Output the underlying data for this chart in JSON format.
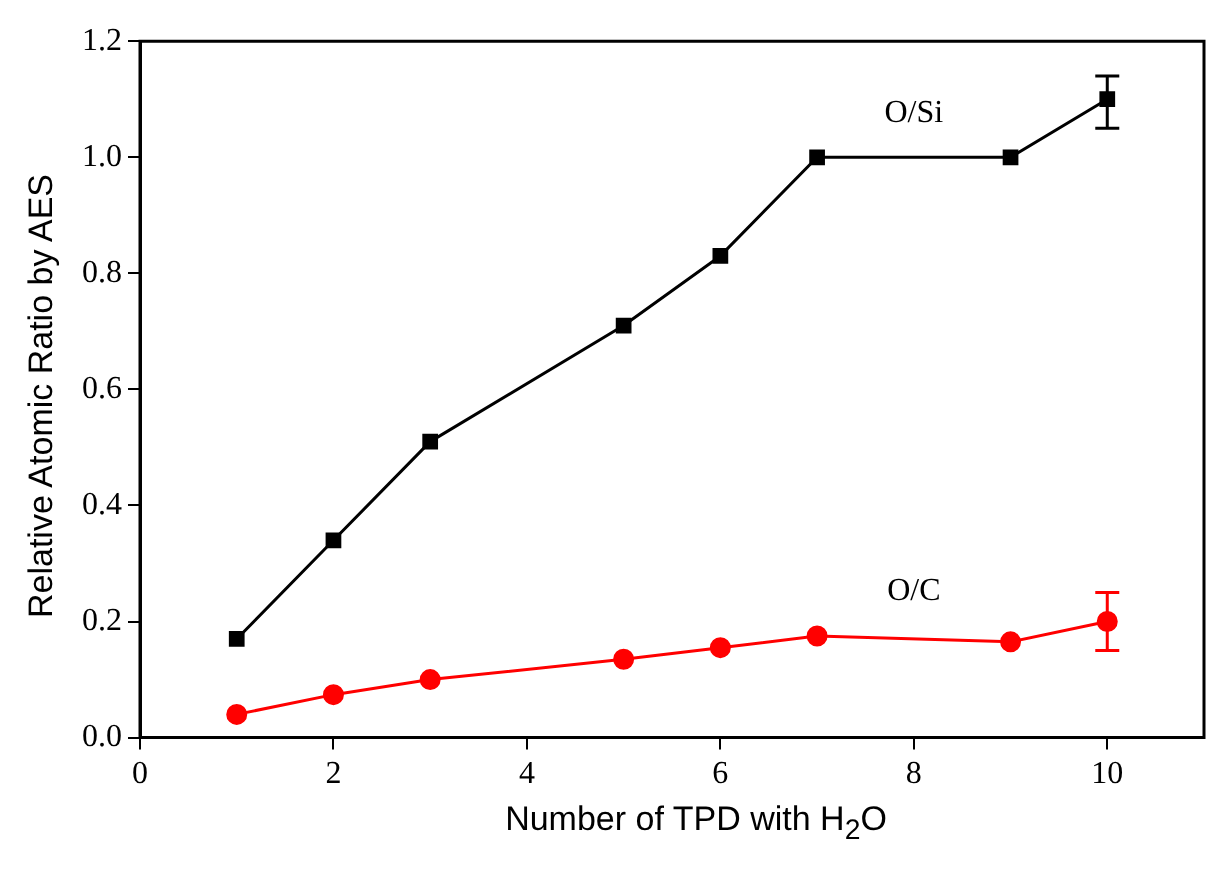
{
  "chart_data": {
    "type": "line",
    "xlabel": "Number of TPD with H$_{2}$O",
    "ylabel": "Relative Atomic Ratio by AES",
    "xlim": [
      0,
      11
    ],
    "xticks": [
      0,
      2,
      4,
      6,
      8,
      10
    ],
    "ylim": [
      0,
      1.2
    ],
    "yticks": [
      {
        "value": 0,
        "label": "0.0"
      },
      {
        "value": 0.2,
        "label": "0.2"
      },
      {
        "value": 0.4,
        "label": "0.4"
      },
      {
        "value": 0.6,
        "label": "0.6"
      },
      {
        "value": 0.8,
        "label": "0.8"
      },
      {
        "value": 1.0,
        "label": "1.0"
      },
      {
        "value": 1.2,
        "label": "1.2"
      }
    ],
    "grid": false,
    "legend": false,
    "series": [
      {
        "name": "O/Si",
        "color": "#000000",
        "marker": "square",
        "x": [
          1,
          2,
          3,
          5,
          6,
          7,
          9,
          10
        ],
        "values": [
          0.17,
          0.34,
          0.51,
          0.71,
          0.83,
          1.0,
          1.0,
          1.1
        ],
        "errors": [
          null,
          null,
          null,
          null,
          null,
          null,
          null,
          [
            1.05,
            1.14
          ]
        ]
      },
      {
        "name": "O/C",
        "color": "#ff0000",
        "marker": "circle",
        "x": [
          1,
          2,
          3,
          5,
          6,
          7,
          9,
          10
        ],
        "values": [
          0.04,
          0.074,
          0.1,
          0.135,
          0.155,
          0.175,
          0.165,
          0.2
        ],
        "errors": [
          null,
          null,
          null,
          null,
          null,
          null,
          null,
          [
            0.15,
            0.25
          ]
        ]
      }
    ]
  }
}
